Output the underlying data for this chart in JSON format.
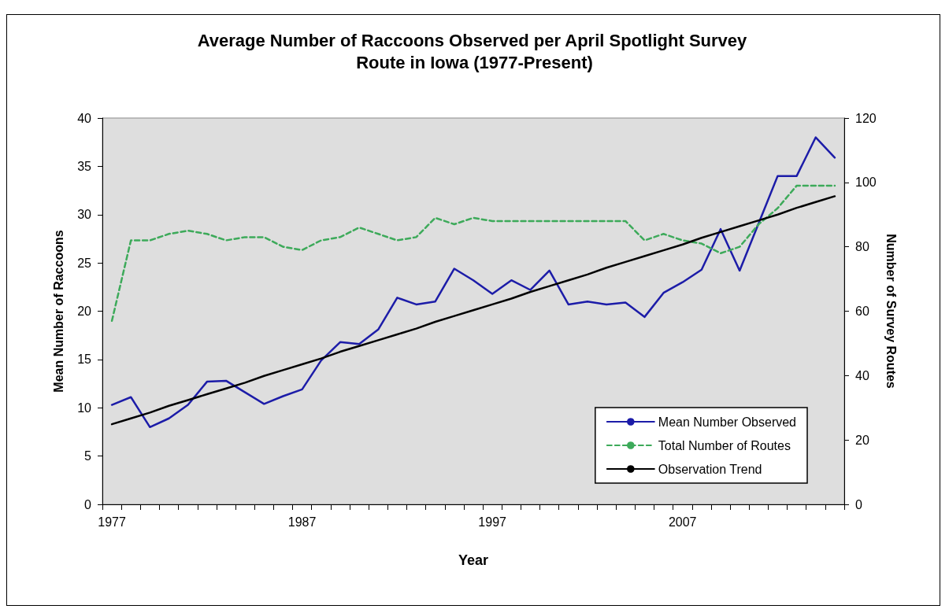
{
  "chart_data": {
    "type": "line",
    "title": "Average Number of Raccoons Observed per April Spotlight Survey Route in Iowa (1977-Present)",
    "xlabel": "Year",
    "ylabel": "Mean Number of Raccoons",
    "y2label": "Number of Survey Routes",
    "categories": [
      "1977",
      null,
      null,
      null,
      null,
      null,
      null,
      null,
      null,
      null,
      "1987",
      null,
      null,
      null,
      null,
      null,
      null,
      null,
      null,
      null,
      "1997",
      null,
      null,
      null,
      null,
      null,
      null,
      null,
      null,
      null,
      "2007",
      null,
      null,
      null,
      null,
      null,
      null,
      null,
      null
    ],
    "ylim": [
      0,
      40
    ],
    "yticks": [
      0,
      5,
      10,
      15,
      20,
      25,
      30,
      35,
      40
    ],
    "y2lim": [
      0,
      120
    ],
    "y2ticks": [
      0,
      20,
      40,
      60,
      80,
      100,
      120
    ],
    "grid": false,
    "legend": "bottom right",
    "marker": "none",
    "series": [
      {
        "name": "Mean Number Observed",
        "color": "#1c1ca8",
        "line_style": "solid",
        "values": [
          10.3,
          11.1,
          8.0,
          8.9,
          10.3,
          12.7,
          12.8,
          11.6,
          10.4,
          11.2,
          11.9,
          14.9,
          16.8,
          16.6,
          18.1,
          21.4,
          20.7,
          21.0,
          24.4,
          23.2,
          21.8,
          23.2,
          22.2,
          24.2,
          20.7,
          21.0,
          20.7,
          20.9,
          19.4,
          21.9,
          23.0,
          24.3,
          28.5,
          24.2,
          29.1,
          34.0,
          34.0,
          38.0,
          35.9
        ]
      },
      {
        "name": "Total Number of Routes",
        "color": "#3daa5a",
        "line_style": "dashed",
        "axis": "y2",
        "values": [
          57,
          82,
          82,
          84,
          85,
          84,
          82,
          83,
          83,
          80,
          79,
          82,
          83,
          86,
          84,
          82,
          83,
          89,
          87,
          89,
          88,
          88,
          88,
          88,
          88,
          88,
          88,
          88,
          82,
          84,
          82,
          81,
          78,
          80,
          87,
          92,
          99,
          99,
          99
        ]
      },
      {
        "name": "Observation Trend",
        "color": "#000000",
        "line_style": "solid",
        "values": [
          8.3,
          8.9,
          9.5,
          10.2,
          10.8,
          11.4,
          12.0,
          12.6,
          13.3,
          13.9,
          14.5,
          15.1,
          15.8,
          16.4,
          17.0,
          17.6,
          18.2,
          18.9,
          19.5,
          20.1,
          20.7,
          21.3,
          22.0,
          22.6,
          23.2,
          23.8,
          24.5,
          25.1,
          25.7,
          26.3,
          26.9,
          27.6,
          28.2,
          28.8,
          29.4,
          30.0,
          30.7,
          31.3,
          31.9
        ]
      }
    ]
  }
}
